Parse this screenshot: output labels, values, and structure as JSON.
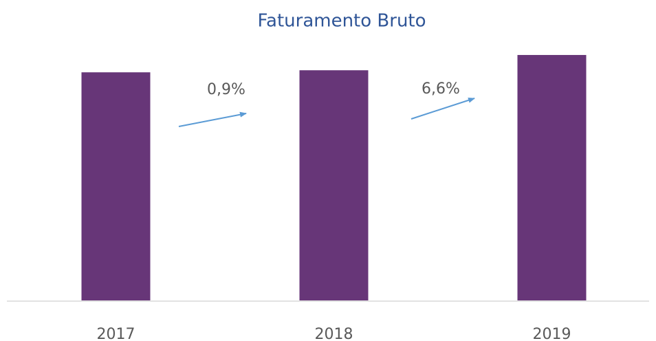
{
  "chart_data": {
    "type": "bar",
    "title": "Faturamento Bruto",
    "categories": [
      "2017",
      "2018",
      "2019"
    ],
    "values": [
      100,
      100.9,
      107.6
    ],
    "color": "#673678",
    "ylim": [
      0,
      110
    ],
    "annotations": [
      "0,9%",
      "6,6%"
    ]
  }
}
